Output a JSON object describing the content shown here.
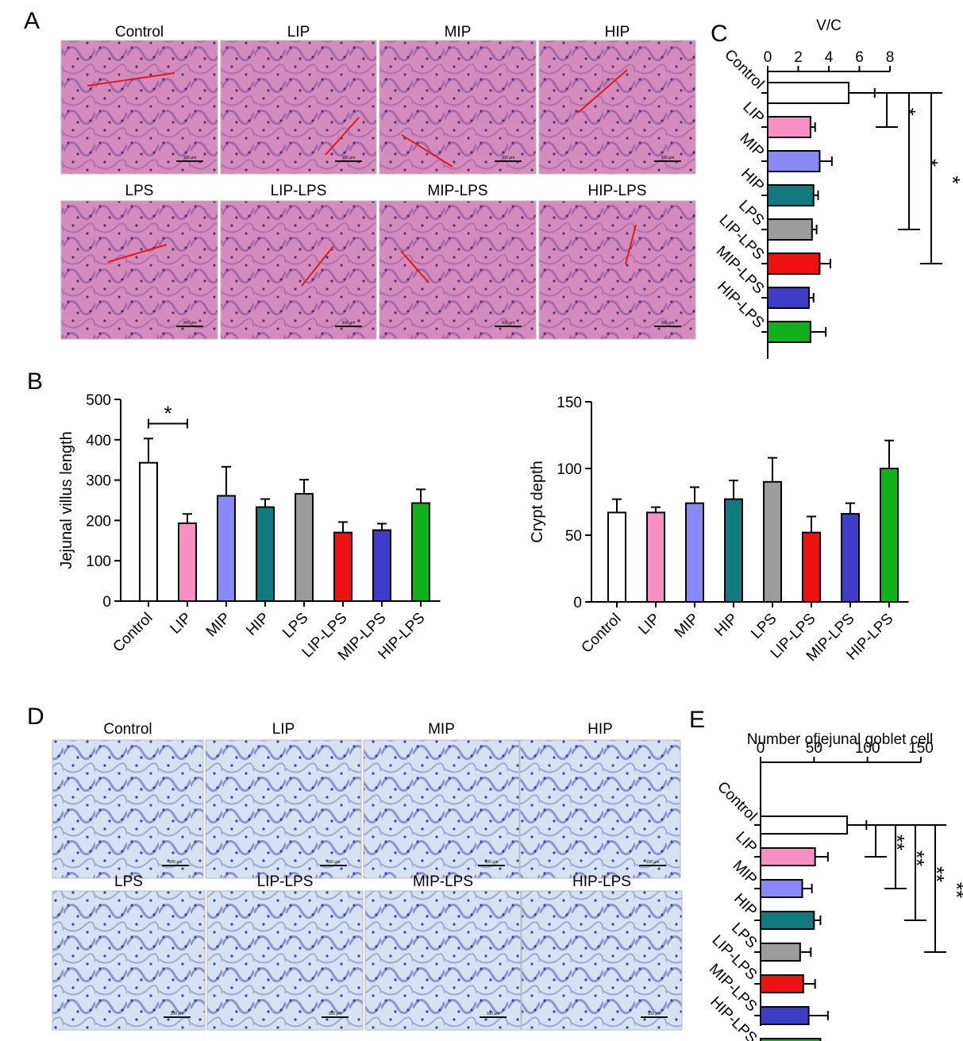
{
  "panel_letters": {
    "a": "A",
    "b": "B",
    "c": "C",
    "d": "D",
    "e": "E"
  },
  "groups": [
    "Control",
    "LIP",
    "MIP",
    "HIP",
    "LPS",
    "LIP-LPS",
    "MIP-LPS",
    "HIP-LPS"
  ],
  "colors": {
    "Control": "#ffffff",
    "LIP": "#f78fc3",
    "MIP": "#8888f6",
    "HIP": "#117a7e",
    "LPS": "#9c9c9c",
    "LIP-LPS": "#ee1111",
    "MIP-LPS": "#3d3dc9",
    "HIP-LPS": "#11b11b"
  },
  "micrographs": {
    "he": {
      "row1": [
        "Control",
        "LIP",
        "MIP",
        "HIP"
      ],
      "row2": [
        "LPS",
        "LIP-LPS",
        "MIP-LPS",
        "HIP-LPS"
      ],
      "scale_labels_row1": [
        "100 μm",
        "100 μm",
        "100 μm",
        "100 μm"
      ],
      "scale_labels_row2": [
        "200 μm",
        "100 μm",
        "100 μm",
        "100 μm"
      ],
      "tint": "#c8649f"
    },
    "pas": {
      "row1": [
        "Control",
        "LIP",
        "MIP",
        "HIP"
      ],
      "row2": [
        "LPS",
        "LIP-LPS",
        "MIP-LPS",
        "HIP-LPS"
      ],
      "scale_labels_row1": [
        "100 μm",
        "100 μm",
        "100 μm",
        "100 μm"
      ],
      "scale_labels_row2": [
        "100 μm",
        "100 μm",
        "100 μm",
        "100 μm"
      ],
      "tint": "#c9d6ec"
    }
  },
  "chart_data": [
    {
      "id": "B-left",
      "type": "bar",
      "ylabel": "Jejunal villus length",
      "categories": [
        "Control",
        "LIP",
        "MIP",
        "HIP",
        "LPS",
        "LIP-LPS",
        "MIP-LPS",
        "HIP-LPS"
      ],
      "values": [
        343,
        193,
        261,
        233,
        266,
        170,
        176,
        243
      ],
      "errors": [
        60,
        23,
        72,
        20,
        35,
        26,
        16,
        34
      ],
      "ylim": [
        0,
        500
      ],
      "yticks": [
        0,
        100,
        200,
        300,
        400,
        500
      ],
      "significance": [
        {
          "from": "Control",
          "to": "LIP",
          "label": "*"
        }
      ]
    },
    {
      "id": "B-right",
      "type": "bar",
      "ylabel": "Crypt depth",
      "categories": [
        "Control",
        "LIP",
        "MIP",
        "HIP",
        "LPS",
        "LIP-LPS",
        "MIP-LPS",
        "HIP-LPS"
      ],
      "values": [
        67,
        67,
        74,
        77,
        90,
        52,
        66,
        100
      ],
      "errors": [
        10,
        4,
        12,
        14,
        18,
        12,
        8,
        21
      ],
      "ylim": [
        0,
        150
      ],
      "yticks": [
        0,
        50,
        100,
        150
      ],
      "significance": []
    },
    {
      "id": "C",
      "type": "bar",
      "orientation": "horizontal",
      "title": "V/C",
      "categories": [
        "Control",
        "LIP",
        "MIP",
        "HIP",
        "LPS",
        "LIP-LPS",
        "MIP-LPS",
        "HIP-LPS"
      ],
      "values": [
        5.3,
        2.8,
        3.4,
        3.0,
        2.9,
        3.4,
        2.7,
        2.8
      ],
      "errors": [
        1.7,
        0.3,
        0.8,
        0.3,
        0.3,
        0.7,
        0.3,
        1.0
      ],
      "xlim": [
        0,
        8
      ],
      "xticks": [
        0,
        2,
        4,
        6,
        8
      ],
      "significance": [
        {
          "from": "Control",
          "to": "LIP",
          "label": "*"
        },
        {
          "from": "Control",
          "to": "LPS",
          "label": "*"
        },
        {
          "from": "Control",
          "to": "LIP-LPS",
          "label": "*"
        }
      ]
    },
    {
      "id": "E",
      "type": "bar",
      "orientation": "horizontal",
      "title": "Number ofjejunal goblet cell",
      "categories": [
        "Control",
        "LIP",
        "MIP",
        "HIP",
        "LPS",
        "LIP-LPS",
        "MIP-LPS",
        "HIP-LPS"
      ],
      "values": [
        81,
        51,
        39,
        50,
        37,
        40,
        45,
        56
      ],
      "errors": [
        18,
        12,
        9,
        6,
        10,
        11,
        18,
        15
      ],
      "xlim": [
        0,
        150
      ],
      "xticks": [
        0,
        50,
        100,
        150
      ],
      "significance": [
        {
          "from": "Control",
          "to": "LIP",
          "label": "**"
        },
        {
          "from": "Control",
          "to": "MIP",
          "label": "**"
        },
        {
          "from": "Control",
          "to": "HIP",
          "label": "**"
        },
        {
          "from": "Control",
          "to": "LPS",
          "label": "**"
        }
      ]
    }
  ]
}
